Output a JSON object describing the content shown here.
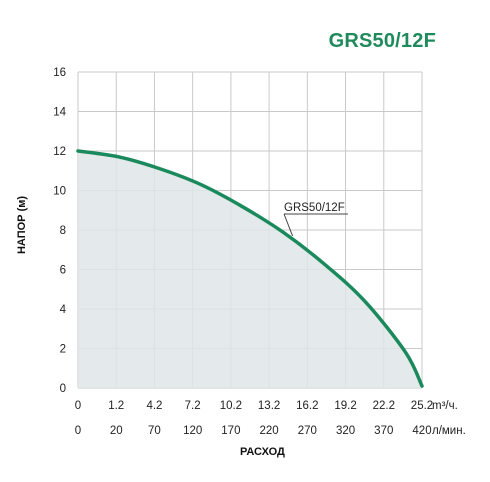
{
  "chart_data": {
    "type": "area",
    "title": "GRS50/12F",
    "ylabel": "НАПОР (м)",
    "xlabel": "РАСХОД",
    "ylim": [
      0,
      16
    ],
    "yticks": [
      "0",
      "2",
      "4",
      "6",
      "8",
      "10",
      "12",
      "14",
      "16"
    ],
    "x_primary": {
      "unit": "m³/ч.",
      "ticks": [
        "0",
        "1.2",
        "4.2",
        "7.2",
        "10.2",
        "13.2",
        "16.2",
        "19.2",
        "22.2",
        "25.2"
      ]
    },
    "x_secondary": {
      "unit": "л/мин.",
      "ticks": [
        "0",
        "20",
        "70",
        "120",
        "170",
        "220",
        "270",
        "320",
        "370",
        "420"
      ]
    },
    "grid": true,
    "series": [
      {
        "name": "GRS50/12F",
        "x_lpm": [
          0,
          50,
          100,
          150,
          200,
          250,
          300,
          350,
          400,
          420
        ],
        "y_m": [
          12.0,
          11.7,
          11.1,
          10.3,
          9.2,
          7.9,
          6.3,
          4.4,
          1.8,
          0.1
        ]
      }
    ],
    "colors": {
      "curve": "#1a8a5c",
      "fill": "#dfe5e8",
      "title": "#1f8a5b"
    }
  }
}
